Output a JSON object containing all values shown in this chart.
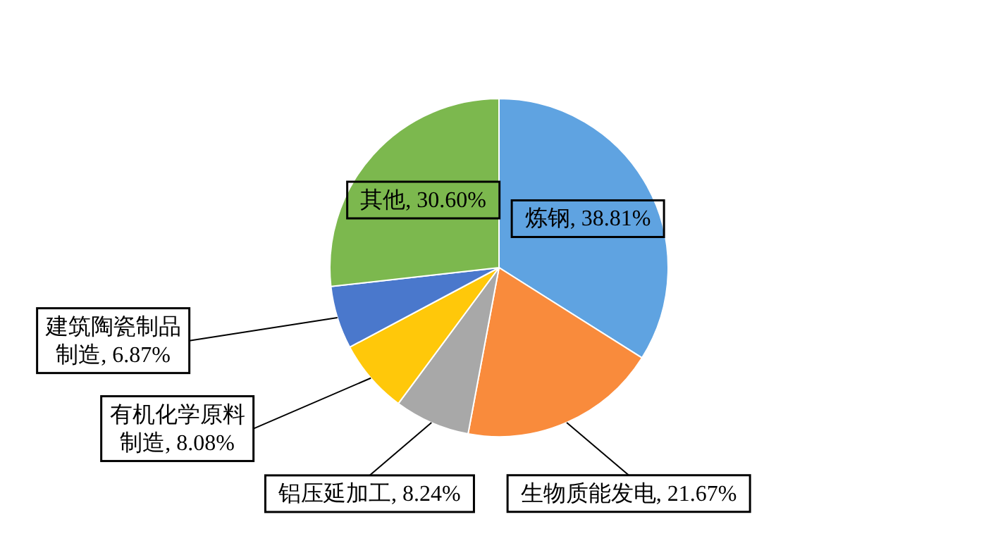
{
  "chart_data": {
    "type": "pie",
    "categories": [
      "炼钢",
      "生物质能发电",
      "铝压延加工",
      "有机化学原料制造",
      "建筑陶瓷制品制造",
      "其他"
    ],
    "values": [
      38.81,
      21.67,
      8.24,
      8.08,
      6.87,
      30.6
    ],
    "colors": [
      "#5fa3e1",
      "#f98b3c",
      "#a8a8a8",
      "#ffc80a",
      "#4a78cc",
      "#7cb84e"
    ],
    "value_labels": [
      "38.81%",
      "21.67%",
      "8.24%",
      "8.08%",
      "6.87%",
      "30.60%"
    ]
  }
}
